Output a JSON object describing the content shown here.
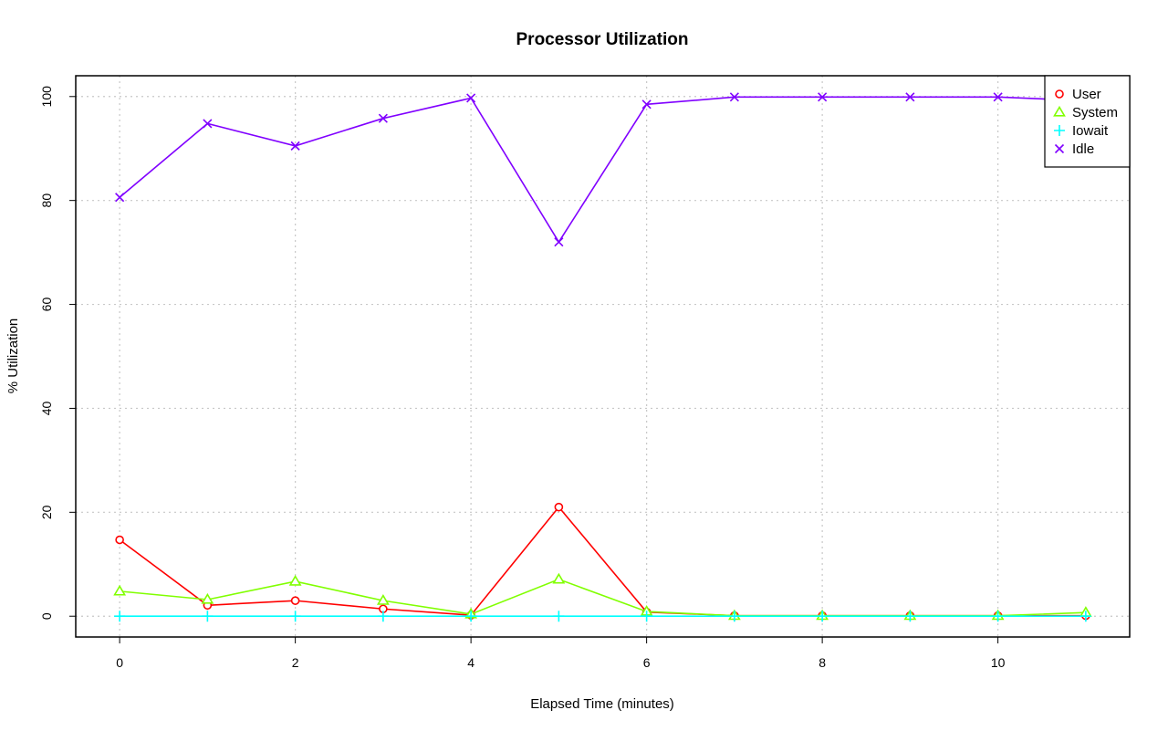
{
  "chart_data": {
    "type": "line",
    "title": "Processor Utilization",
    "xlabel": "Elapsed Time (minutes)",
    "ylabel": "% Utilization",
    "x": [
      0,
      1,
      2,
      3,
      4,
      5,
      6,
      7,
      8,
      9,
      10,
      11
    ],
    "xlim": [
      -0.5,
      11.5
    ],
    "ylim": [
      -4,
      104
    ],
    "xticks": [
      0,
      2,
      4,
      6,
      8,
      10
    ],
    "yticks": [
      0,
      20,
      40,
      60,
      80,
      100
    ],
    "grid": true,
    "legend_position": "top-right",
    "series": [
      {
        "name": "User",
        "color": "#ff0000",
        "marker": "circle",
        "values": [
          14.7,
          2.1,
          3.0,
          1.4,
          0.2,
          21.0,
          0.8,
          0.1,
          0.1,
          0.1,
          0.1,
          0.1
        ]
      },
      {
        "name": "System",
        "color": "#80ff00",
        "marker": "triangle",
        "values": [
          4.8,
          3.2,
          6.7,
          3.0,
          0.4,
          7.1,
          0.9,
          0.1,
          0.1,
          0.1,
          0.1,
          0.7
        ]
      },
      {
        "name": "Iowait",
        "color": "#00ffff",
        "marker": "plus",
        "values": [
          0,
          0,
          0,
          0,
          0,
          0,
          0,
          0,
          0,
          0,
          0,
          0
        ]
      },
      {
        "name": "Idle",
        "color": "#8000ff",
        "marker": "cross",
        "values": [
          80.6,
          94.8,
          90.5,
          95.8,
          99.7,
          72.0,
          98.5,
          99.9,
          99.9,
          99.9,
          99.9,
          99.2
        ]
      }
    ]
  }
}
